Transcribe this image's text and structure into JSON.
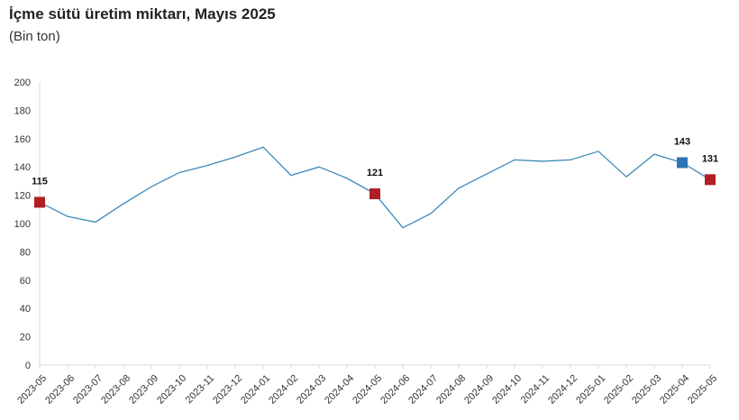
{
  "title": "İçme sütü üretim miktarı, Mayıs 2025",
  "subtitle": "(Bin ton)",
  "chart_data": {
    "type": "line",
    "title": "İçme sütü üretim miktarı, Mayıs 2025",
    "ylabel": "(Bin ton)",
    "xlabel": "",
    "ylim": [
      0,
      200
    ],
    "yticks": [
      0,
      20,
      40,
      60,
      80,
      100,
      120,
      140,
      160,
      180,
      200
    ],
    "grid": false,
    "categories": [
      "2023-05",
      "2023-06",
      "2023-07",
      "2023-08",
      "2023-09",
      "2023-10",
      "2023-11",
      "2023-12",
      "2024-01",
      "2024-02",
      "2024-03",
      "2024-04",
      "2024-05",
      "2024-06",
      "2024-07",
      "2024-08",
      "2024-09",
      "2024-10",
      "2024-11",
      "2024-12",
      "2025-01",
      "2025-02",
      "2025-03",
      "2025-04",
      "2025-05"
    ],
    "series": [
      {
        "values": [
          115,
          105,
          101,
          114,
          126,
          136,
          141,
          147,
          154,
          134,
          140,
          132,
          121,
          97,
          107,
          125,
          135,
          145,
          144,
          145,
          151,
          133,
          149,
          143,
          131
        ],
        "color": "#3b8ab8"
      }
    ],
    "highlights": [
      {
        "index": 0,
        "label": "115",
        "color": "#b01e23"
      },
      {
        "index": 12,
        "label": "121",
        "color": "#b01e23"
      },
      {
        "index": 23,
        "label": "143",
        "color": "#2e75b6"
      },
      {
        "index": 24,
        "label": "131",
        "color": "#b01e23"
      }
    ]
  }
}
